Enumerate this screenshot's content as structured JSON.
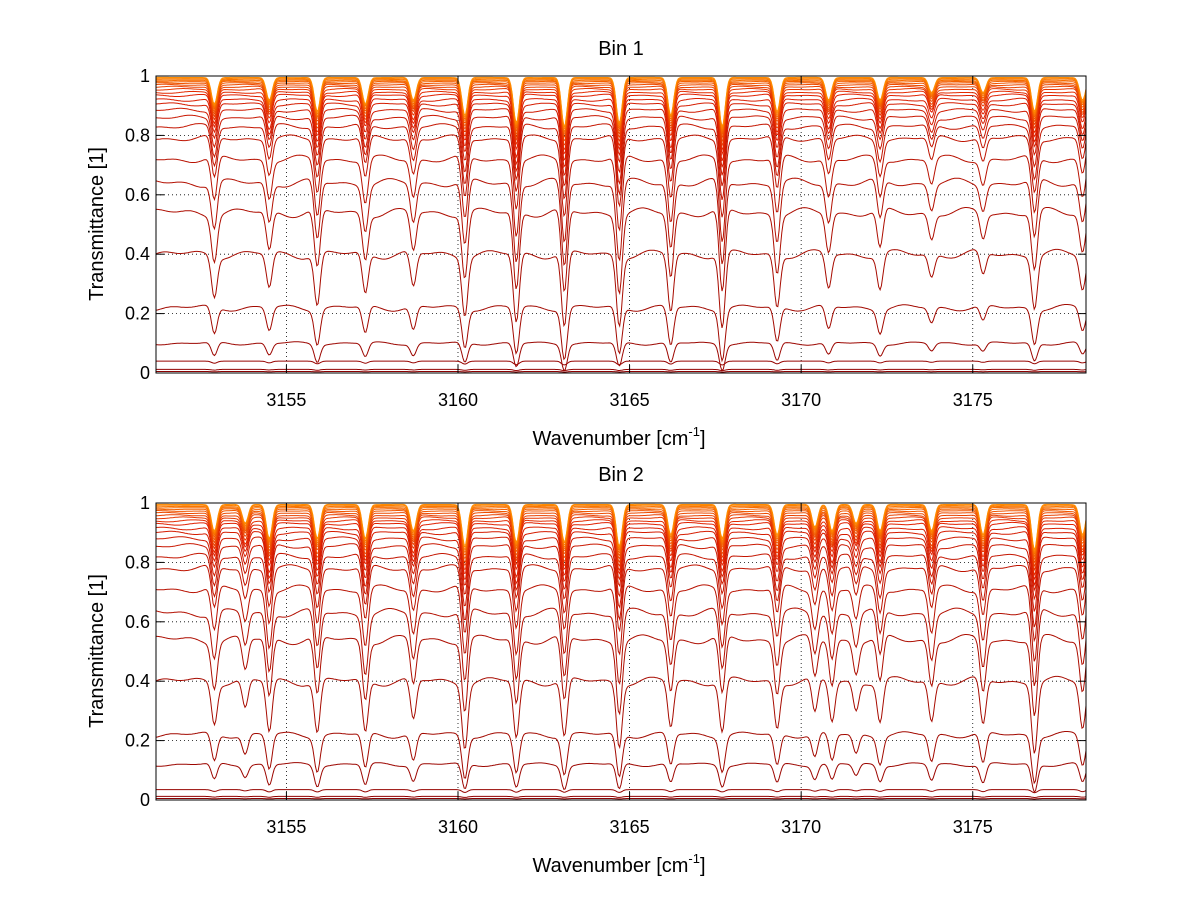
{
  "chart_data": [
    {
      "type": "line",
      "title": "Bin 1",
      "xlabel": "Wavenumber [cm",
      "xlabel_sup": "-1",
      "xlabel_close": "]",
      "ylabel": "Transmittance [1]",
      "xlim": [
        3151.2,
        3178.3
      ],
      "ylim": [
        0,
        1
      ],
      "xticks": [
        3155,
        3160,
        3165,
        3170,
        3175
      ],
      "xtick_labels": [
        "3155",
        "3160",
        "3165",
        "3170",
        "3175"
      ],
      "yticks": [
        0,
        0.2,
        0.4,
        0.6,
        0.8,
        1
      ],
      "ytick_labels": [
        "0",
        "0.2",
        "0.4",
        "0.6",
        "0.8",
        "1"
      ],
      "grid": true,
      "colormap": "dark red to orange",
      "colors": {
        "dark": "#8b0000",
        "mid": "#e02000",
        "light": "#ff8c00"
      },
      "series_baselines": [
        0.005,
        0.012,
        0.04,
        0.1,
        0.22,
        0.4,
        0.54,
        0.64,
        0.72,
        0.79,
        0.83,
        0.86,
        0.885,
        0.905,
        0.92,
        0.935,
        0.945,
        0.955,
        0.963,
        0.97,
        0.976,
        0.981,
        0.985,
        0.989,
        0.992,
        0.995
      ],
      "absorption_lines": [
        {
          "x": 3152.9,
          "depth": 0.35
        },
        {
          "x": 3154.5,
          "depth": 0.3
        },
        {
          "x": 3155.9,
          "depth": 0.45
        },
        {
          "x": 3157.3,
          "depth": 0.35
        },
        {
          "x": 3158.7,
          "depth": 0.3
        },
        {
          "x": 3160.2,
          "depth": 0.5
        },
        {
          "x": 3161.7,
          "depth": 0.6
        },
        {
          "x": 3163.1,
          "depth": 0.65
        },
        {
          "x": 3164.7,
          "depth": 0.6
        },
        {
          "x": 3166.2,
          "depth": 0.5
        },
        {
          "x": 3167.7,
          "depth": 0.65
        },
        {
          "x": 3169.3,
          "depth": 0.45
        },
        {
          "x": 3170.8,
          "depth": 0.3
        },
        {
          "x": 3172.3,
          "depth": 0.3
        },
        {
          "x": 3173.8,
          "depth": 0.2
        },
        {
          "x": 3175.3,
          "depth": 0.2
        },
        {
          "x": 3176.8,
          "depth": 0.45
        },
        {
          "x": 3178.2,
          "depth": 0.3
        }
      ]
    },
    {
      "type": "line",
      "title": "Bin 2",
      "xlabel": "Wavenumber [cm",
      "xlabel_sup": "-1",
      "xlabel_close": "]",
      "ylabel": "Transmittance [1]",
      "xlim": [
        3151.2,
        3178.3
      ],
      "ylim": [
        0,
        1
      ],
      "xticks": [
        3155,
        3160,
        3165,
        3170,
        3175
      ],
      "xtick_labels": [
        "3155",
        "3160",
        "3165",
        "3170",
        "3175"
      ],
      "yticks": [
        0,
        0.2,
        0.4,
        0.6,
        0.8,
        1
      ],
      "ytick_labels": [
        "0",
        "0.2",
        "0.4",
        "0.6",
        "0.8",
        "1"
      ],
      "grid": true,
      "colormap": "dark red to orange",
      "colors": {
        "dark": "#8b0000",
        "mid": "#e02000",
        "light": "#ff8c00"
      },
      "series_baselines": [
        0.005,
        0.012,
        0.035,
        0.12,
        0.22,
        0.4,
        0.54,
        0.63,
        0.71,
        0.78,
        0.82,
        0.855,
        0.88,
        0.9,
        0.915,
        0.93,
        0.94,
        0.95,
        0.958,
        0.966,
        0.973,
        0.979,
        0.984,
        0.988,
        0.992,
        0.995
      ],
      "absorption_lines": [
        {
          "x": 3152.9,
          "depth": 0.35
        },
        {
          "x": 3153.8,
          "depth": 0.25
        },
        {
          "x": 3154.5,
          "depth": 0.45
        },
        {
          "x": 3155.9,
          "depth": 0.45
        },
        {
          "x": 3157.3,
          "depth": 0.45
        },
        {
          "x": 3158.7,
          "depth": 0.35
        },
        {
          "x": 3160.2,
          "depth": 0.55
        },
        {
          "x": 3161.7,
          "depth": 0.5
        },
        {
          "x": 3163.1,
          "depth": 0.5
        },
        {
          "x": 3164.7,
          "depth": 0.55
        },
        {
          "x": 3166.2,
          "depth": 0.4
        },
        {
          "x": 3167.7,
          "depth": 0.45
        },
        {
          "x": 3169.3,
          "depth": 0.4
        },
        {
          "x": 3170.4,
          "depth": 0.3
        },
        {
          "x": 3170.9,
          "depth": 0.35
        },
        {
          "x": 3171.6,
          "depth": 0.25
        },
        {
          "x": 3172.3,
          "depth": 0.35
        },
        {
          "x": 3173.8,
          "depth": 0.35
        },
        {
          "x": 3175.3,
          "depth": 0.4
        },
        {
          "x": 3176.8,
          "depth": 0.6
        },
        {
          "x": 3178.2,
          "depth": 0.4
        }
      ]
    }
  ]
}
